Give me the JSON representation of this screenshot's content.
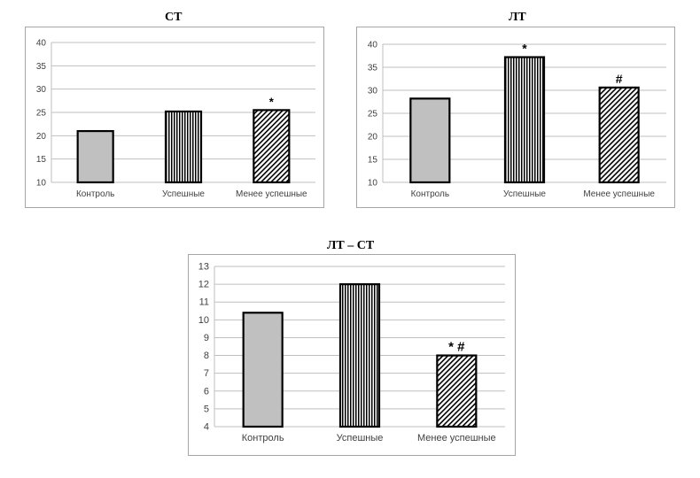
{
  "chart_data": [
    {
      "type": "bar",
      "title": "СТ",
      "categories": [
        "Контроль",
        "Успешные",
        "Менее успешные"
      ],
      "values": [
        21,
        25.2,
        25.5
      ],
      "annotations": [
        "",
        "",
        "*"
      ],
      "ylim": [
        10,
        40
      ],
      "yticks": [
        "10",
        "15",
        "20",
        "25",
        "30",
        "35",
        "40"
      ],
      "grid": true,
      "legend": "none",
      "bar_fills": [
        "solid-gray",
        "vertical-stripes",
        "diagonal-hatch"
      ]
    },
    {
      "type": "bar",
      "title": "ЛТ",
      "categories": [
        "Контроль",
        "Успешные",
        "Менее успешные"
      ],
      "values": [
        28.2,
        37.2,
        30.6
      ],
      "annotations": [
        "",
        "*",
        "#"
      ],
      "ylim": [
        10,
        40
      ],
      "yticks": [
        "10",
        "15",
        "20",
        "25",
        "30",
        "35",
        "40"
      ],
      "grid": true,
      "legend": "none",
      "bar_fills": [
        "solid-gray",
        "vertical-stripes",
        "diagonal-hatch"
      ]
    },
    {
      "type": "bar",
      "title": "ЛТ – СТ",
      "categories": [
        "Контроль",
        "Успешные",
        "Менее успешные"
      ],
      "values": [
        10.4,
        12,
        8
      ],
      "annotations": [
        "",
        "",
        "* #"
      ],
      "ylim": [
        4,
        13
      ],
      "yticks": [
        "4",
        "5",
        "6",
        "7",
        "8",
        "9",
        "10",
        "11",
        "12",
        "13"
      ],
      "grid": true,
      "legend": "none",
      "bar_fills": [
        "solid-gray",
        "vertical-stripes",
        "diagonal-hatch"
      ]
    }
  ],
  "colors": {
    "bar_gray": "#c0c0c0",
    "bar_outline": "#000000",
    "grid": "#bfbfbf",
    "frame": "#a6a6a6",
    "text": "#404040"
  }
}
